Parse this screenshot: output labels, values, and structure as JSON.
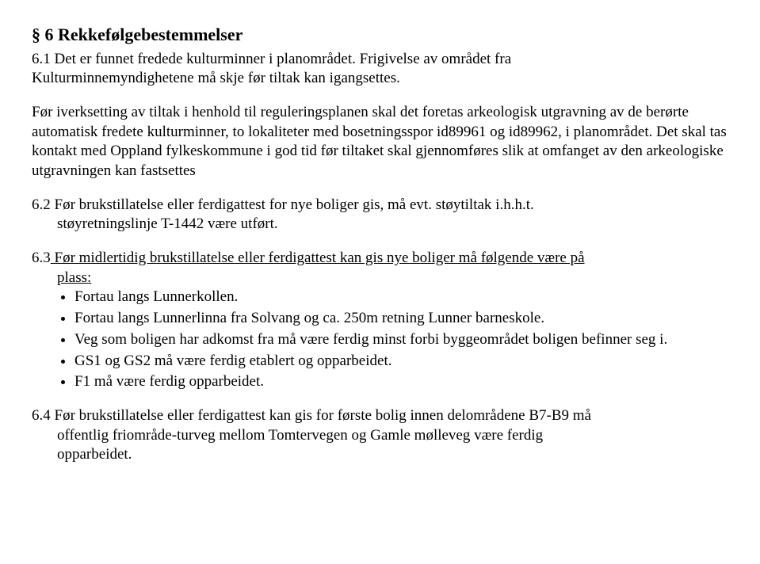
{
  "section6": {
    "heading": "§ 6 Rekkefølgebestemmelser",
    "p6_1_label": "6.1",
    "p6_1_line1": " Det er funnet fredede kulturminner i planområdet. Frigivelse av området fra",
    "p6_1_line2": "Kulturminnemyndighetene må skje før tiltak kan igangsettes.",
    "p6_1_para2": "Før iverksetting av tiltak i henhold til reguleringsplanen skal det foretas arkeologisk utgravning av de berørte automatisk fredete kulturminner, to lokaliteter med bosetningsspor id89961 og id89962, i planområdet. Det skal tas kontakt med Oppland fylkeskommune i god tid før tiltaket skal gjennomføres slik at omfanget av den arkeologiske utgravningen kan fastsettes",
    "p6_2_label": "6.2",
    "p6_2_line1": " Før brukstillatelse eller ferdigattest for nye boliger gis, må evt. støytiltak i.h.h.t.",
    "p6_2_line2": "støyretningslinje T-1442 være utført.",
    "p6_3_label": "6.3",
    "p6_3_line1_a": " Før midlertidig brukstillatelse eller ferdigattest kan gis nye boliger må følgende være på",
    "p6_3_line2": "plass:",
    "bullets": [
      "Fortau langs Lunnerkollen.",
      "Fortau langs Lunnerlinna fra Solvang og ca. 250m retning Lunner barneskole.",
      "Veg som boligen har adkomst fra må være ferdig minst forbi byggeområdet boligen befinner seg i.",
      "GS1 og GS2 må være ferdig etablert og opparbeidet.",
      "F1 må være ferdig opparbeidet."
    ],
    "p6_4_label": "6.4",
    "p6_4_line1": " Før brukstillatelse eller ferdigattest kan gis for første bolig innen delområdene B7-B9 må",
    "p6_4_line2": "offentlig friområde-turveg mellom Tomtervegen og Gamle mølleveg være ferdig",
    "p6_4_line3": "opparbeidet."
  }
}
